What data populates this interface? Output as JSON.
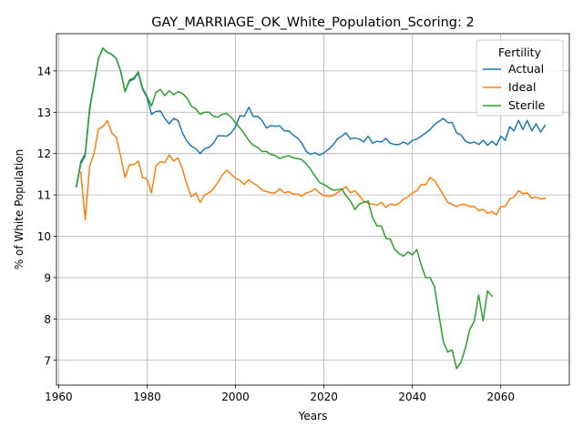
{
  "chart_data": {
    "type": "line",
    "title": "GAY_MARRIAGE_OK_White_Population_Scoring: 2",
    "xlabel": "Years",
    "ylabel": "% of White Population",
    "xlim": [
      1959.5,
      2075.5
    ],
    "ylim": [
      6.4,
      14.9
    ],
    "xticks": [
      1960,
      1980,
      2000,
      2020,
      2040,
      2060
    ],
    "yticks": [
      7,
      8,
      9,
      10,
      11,
      12,
      13,
      14
    ],
    "grid": true,
    "legend": {
      "title": "Fertility",
      "placement": "upper right"
    },
    "series": [
      {
        "name": "Actual",
        "color": "#1f77b4",
        "points": [
          [
            1964,
            11.2
          ],
          [
            1965,
            11.8
          ],
          [
            1966,
            12.0
          ],
          [
            1967,
            13.1
          ],
          [
            1968,
            13.7
          ],
          [
            1969,
            14.3
          ],
          [
            1970,
            14.55
          ],
          [
            1971,
            14.45
          ],
          [
            1972,
            14.4
          ],
          [
            1973,
            14.3
          ],
          [
            1974,
            14.0
          ],
          [
            1975,
            13.5
          ],
          [
            1976,
            13.75
          ],
          [
            1977,
            13.8
          ],
          [
            1978,
            13.95
          ],
          [
            1979,
            13.55
          ],
          [
            1980,
            13.35
          ],
          [
            1981,
            12.95
          ],
          [
            1982,
            13.02
          ],
          [
            1983,
            13.03
          ],
          [
            1984,
            12.85
          ],
          [
            1985,
            12.72
          ],
          [
            1986,
            12.85
          ],
          [
            1987,
            12.8
          ],
          [
            1988,
            12.5
          ],
          [
            1989,
            12.3
          ],
          [
            1990,
            12.18
          ],
          [
            1991,
            12.12
          ],
          [
            1992,
            12.0
          ],
          [
            1993,
            12.12
          ],
          [
            1994,
            12.15
          ],
          [
            1995,
            12.25
          ],
          [
            1996,
            12.43
          ],
          [
            1997,
            12.43
          ],
          [
            1998,
            12.42
          ],
          [
            1999,
            12.5
          ],
          [
            2000,
            12.65
          ],
          [
            2001,
            12.92
          ],
          [
            2002,
            12.9
          ],
          [
            2003,
            13.12
          ],
          [
            2004,
            12.9
          ],
          [
            2005,
            12.9
          ],
          [
            2006,
            12.8
          ],
          [
            2007,
            12.62
          ],
          [
            2008,
            12.68
          ],
          [
            2009,
            12.66
          ],
          [
            2010,
            12.67
          ],
          [
            2011,
            12.55
          ],
          [
            2012,
            12.55
          ],
          [
            2013,
            12.45
          ],
          [
            2014,
            12.38
          ],
          [
            2015,
            12.25
          ],
          [
            2016,
            12.05
          ],
          [
            2017,
            11.98
          ],
          [
            2018,
            12.02
          ],
          [
            2019,
            11.96
          ],
          [
            2020,
            12.02
          ],
          [
            2021,
            12.1
          ],
          [
            2022,
            12.2
          ],
          [
            2023,
            12.35
          ],
          [
            2024,
            12.42
          ],
          [
            2025,
            12.5
          ],
          [
            2026,
            12.35
          ],
          [
            2027,
            12.38
          ],
          [
            2028,
            12.35
          ],
          [
            2029,
            12.28
          ],
          [
            2030,
            12.42
          ],
          [
            2031,
            12.25
          ],
          [
            2032,
            12.3
          ],
          [
            2033,
            12.28
          ],
          [
            2034,
            12.37
          ],
          [
            2035,
            12.25
          ],
          [
            2036,
            12.22
          ],
          [
            2037,
            12.22
          ],
          [
            2038,
            12.28
          ],
          [
            2039,
            12.22
          ],
          [
            2040,
            12.32
          ],
          [
            2041,
            12.35
          ],
          [
            2042,
            12.42
          ],
          [
            2043,
            12.5
          ],
          [
            2044,
            12.58
          ],
          [
            2045,
            12.7
          ],
          [
            2046,
            12.78
          ],
          [
            2047,
            12.85
          ],
          [
            2048,
            12.75
          ],
          [
            2049,
            12.75
          ],
          [
            2050,
            12.5
          ],
          [
            2051,
            12.45
          ],
          [
            2052,
            12.3
          ],
          [
            2053,
            12.25
          ],
          [
            2054,
            12.28
          ],
          [
            2055,
            12.22
          ],
          [
            2056,
            12.32
          ],
          [
            2057,
            12.2
          ],
          [
            2058,
            12.3
          ],
          [
            2059,
            12.2
          ],
          [
            2060,
            12.42
          ],
          [
            2061,
            12.32
          ],
          [
            2062,
            12.65
          ],
          [
            2063,
            12.55
          ],
          [
            2064,
            12.8
          ],
          [
            2065,
            12.58
          ],
          [
            2066,
            12.8
          ],
          [
            2067,
            12.55
          ],
          [
            2068,
            12.72
          ],
          [
            2069,
            12.52
          ],
          [
            2070,
            12.68
          ]
        ]
      },
      {
        "name": "Ideal",
        "color": "#ff7f0e",
        "points": [
          [
            1965,
            11.55
          ],
          [
            1966,
            10.4
          ],
          [
            1967,
            11.7
          ],
          [
            1968,
            12.0
          ],
          [
            1969,
            12.6
          ],
          [
            1970,
            12.65
          ],
          [
            1971,
            12.8
          ],
          [
            1972,
            12.5
          ],
          [
            1973,
            12.4
          ],
          [
            1974,
            11.95
          ],
          [
            1975,
            11.42
          ],
          [
            1976,
            11.73
          ],
          [
            1977,
            11.73
          ],
          [
            1978,
            11.82
          ],
          [
            1979,
            11.42
          ],
          [
            1980,
            11.38
          ],
          [
            1981,
            11.05
          ],
          [
            1982,
            11.7
          ],
          [
            1983,
            11.8
          ],
          [
            1984,
            11.78
          ],
          [
            1985,
            11.97
          ],
          [
            1986,
            11.82
          ],
          [
            1987,
            11.9
          ],
          [
            1988,
            11.62
          ],
          [
            1989,
            11.25
          ],
          [
            1990,
            10.95
          ],
          [
            1991,
            11.05
          ],
          [
            1992,
            10.82
          ],
          [
            1993,
            11.0
          ],
          [
            1994,
            11.05
          ],
          [
            1995,
            11.15
          ],
          [
            1996,
            11.3
          ],
          [
            1997,
            11.48
          ],
          [
            1998,
            11.6
          ],
          [
            1999,
            11.5
          ],
          [
            2000,
            11.4
          ],
          [
            2001,
            11.35
          ],
          [
            2002,
            11.25
          ],
          [
            2003,
            11.37
          ],
          [
            2004,
            11.28
          ],
          [
            2005,
            11.22
          ],
          [
            2006,
            11.12
          ],
          [
            2007,
            11.08
          ],
          [
            2008,
            11.05
          ],
          [
            2009,
            11.05
          ],
          [
            2010,
            11.15
          ],
          [
            2011,
            11.05
          ],
          [
            2012,
            11.08
          ],
          [
            2013,
            11.02
          ],
          [
            2014,
            11.02
          ],
          [
            2015,
            10.97
          ],
          [
            2016,
            11.05
          ],
          [
            2017,
            11.08
          ],
          [
            2018,
            11.15
          ],
          [
            2019,
            11.05
          ],
          [
            2020,
            10.98
          ],
          [
            2021,
            10.97
          ],
          [
            2022,
            10.98
          ],
          [
            2023,
            11.05
          ],
          [
            2024,
            11.12
          ],
          [
            2025,
            11.2
          ],
          [
            2026,
            11.05
          ],
          [
            2027,
            11.1
          ],
          [
            2028,
            10.98
          ],
          [
            2029,
            10.85
          ],
          [
            2030,
            10.8
          ],
          [
            2031,
            10.78
          ],
          [
            2032,
            10.75
          ],
          [
            2033,
            10.82
          ],
          [
            2034,
            10.7
          ],
          [
            2035,
            10.78
          ],
          [
            2036,
            10.75
          ],
          [
            2037,
            10.8
          ],
          [
            2038,
            10.9
          ],
          [
            2039,
            10.95
          ],
          [
            2040,
            11.05
          ],
          [
            2041,
            11.1
          ],
          [
            2042,
            11.25
          ],
          [
            2043,
            11.25
          ],
          [
            2044,
            11.42
          ],
          [
            2045,
            11.35
          ],
          [
            2046,
            11.18
          ],
          [
            2047,
            11.0
          ],
          [
            2048,
            10.82
          ],
          [
            2049,
            10.77
          ],
          [
            2050,
            10.72
          ],
          [
            2051,
            10.77
          ],
          [
            2052,
            10.77
          ],
          [
            2053,
            10.72
          ],
          [
            2054,
            10.72
          ],
          [
            2055,
            10.62
          ],
          [
            2056,
            10.65
          ],
          [
            2057,
            10.55
          ],
          [
            2058,
            10.6
          ],
          [
            2059,
            10.52
          ],
          [
            2060,
            10.72
          ],
          [
            2061,
            10.72
          ],
          [
            2062,
            10.9
          ],
          [
            2063,
            10.95
          ],
          [
            2064,
            11.1
          ],
          [
            2065,
            11.03
          ],
          [
            2066,
            11.05
          ],
          [
            2067,
            10.92
          ],
          [
            2068,
            10.95
          ],
          [
            2069,
            10.9
          ],
          [
            2070,
            10.92
          ]
        ]
      },
      {
        "name": "Sterile",
        "color": "#2ca02c",
        "points": [
          [
            1964,
            11.2
          ],
          [
            1965,
            11.75
          ],
          [
            1966,
            11.95
          ],
          [
            1967,
            13.05
          ],
          [
            1968,
            13.7
          ],
          [
            1969,
            14.3
          ],
          [
            1970,
            14.55
          ],
          [
            1971,
            14.45
          ],
          [
            1972,
            14.4
          ],
          [
            1973,
            14.3
          ],
          [
            1974,
            14.0
          ],
          [
            1975,
            13.5
          ],
          [
            1976,
            13.78
          ],
          [
            1977,
            13.83
          ],
          [
            1978,
            13.98
          ],
          [
            1979,
            13.58
          ],
          [
            1980,
            13.38
          ],
          [
            1981,
            13.15
          ],
          [
            1982,
            13.48
          ],
          [
            1983,
            13.55
          ],
          [
            1984,
            13.4
          ],
          [
            1985,
            13.52
          ],
          [
            1986,
            13.42
          ],
          [
            1987,
            13.5
          ],
          [
            1988,
            13.45
          ],
          [
            1989,
            13.35
          ],
          [
            1990,
            13.15
          ],
          [
            1991,
            13.08
          ],
          [
            1992,
            12.95
          ],
          [
            1993,
            13.0
          ],
          [
            1994,
            13.0
          ],
          [
            1995,
            12.9
          ],
          [
            1996,
            12.88
          ],
          [
            1997,
            12.95
          ],
          [
            1998,
            12.97
          ],
          [
            1999,
            12.88
          ],
          [
            2000,
            12.75
          ],
          [
            2001,
            12.62
          ],
          [
            2002,
            12.48
          ],
          [
            2003,
            12.32
          ],
          [
            2004,
            12.2
          ],
          [
            2005,
            12.15
          ],
          [
            2006,
            12.05
          ],
          [
            2007,
            12.05
          ],
          [
            2008,
            11.98
          ],
          [
            2009,
            11.95
          ],
          [
            2010,
            11.88
          ],
          [
            2011,
            11.92
          ],
          [
            2012,
            11.95
          ],
          [
            2013,
            11.9
          ],
          [
            2014,
            11.88
          ],
          [
            2015,
            11.85
          ],
          [
            2016,
            11.75
          ],
          [
            2017,
            11.62
          ],
          [
            2018,
            11.45
          ],
          [
            2019,
            11.3
          ],
          [
            2020,
            11.25
          ],
          [
            2021,
            11.18
          ],
          [
            2022,
            11.12
          ],
          [
            2023,
            11.12
          ],
          [
            2024,
            11.15
          ],
          [
            2025,
            10.98
          ],
          [
            2026,
            10.85
          ],
          [
            2027,
            10.65
          ],
          [
            2028,
            10.78
          ],
          [
            2029,
            10.82
          ],
          [
            2030,
            10.85
          ],
          [
            2031,
            10.45
          ],
          [
            2032,
            10.25
          ],
          [
            2033,
            10.25
          ],
          [
            2034,
            9.95
          ],
          [
            2035,
            9.93
          ],
          [
            2036,
            9.68
          ],
          [
            2037,
            9.58
          ],
          [
            2038,
            9.52
          ],
          [
            2039,
            9.62
          ],
          [
            2040,
            9.55
          ],
          [
            2041,
            9.68
          ],
          [
            2042,
            9.3
          ],
          [
            2043,
            9.0
          ],
          [
            2044,
            9.0
          ],
          [
            2045,
            8.78
          ],
          [
            2046,
            8.1
          ],
          [
            2047,
            7.45
          ],
          [
            2048,
            7.2
          ],
          [
            2049,
            7.25
          ],
          [
            2050,
            6.8
          ],
          [
            2051,
            6.95
          ],
          [
            2052,
            7.3
          ],
          [
            2053,
            7.75
          ],
          [
            2054,
            7.95
          ],
          [
            2055,
            8.58
          ],
          [
            2056,
            7.95
          ],
          [
            2057,
            8.68
          ],
          [
            2058,
            8.55
          ]
        ]
      }
    ]
  }
}
